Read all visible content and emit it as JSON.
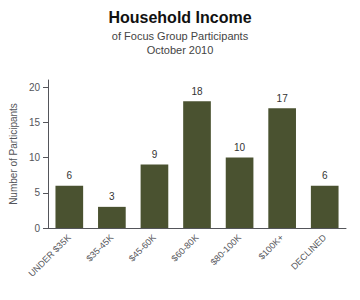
{
  "chart_data": {
    "type": "bar",
    "title": "Household Income",
    "subtitle": [
      "of Focus Group Participants",
      "October 2010"
    ],
    "categories": [
      "UNDER $35K",
      "$35-45K",
      "$45-60K",
      "$60-80K",
      "$80-100K",
      "$100K+",
      "DECLINED"
    ],
    "values": [
      6,
      3,
      9,
      18,
      10,
      17,
      6
    ],
    "color": "#4a5230",
    "ylabel": "Number of Participants",
    "ylim": [
      0,
      21
    ],
    "yticks": [
      0,
      5,
      10,
      15,
      20
    ],
    "grid": false,
    "data_labels": true
  }
}
